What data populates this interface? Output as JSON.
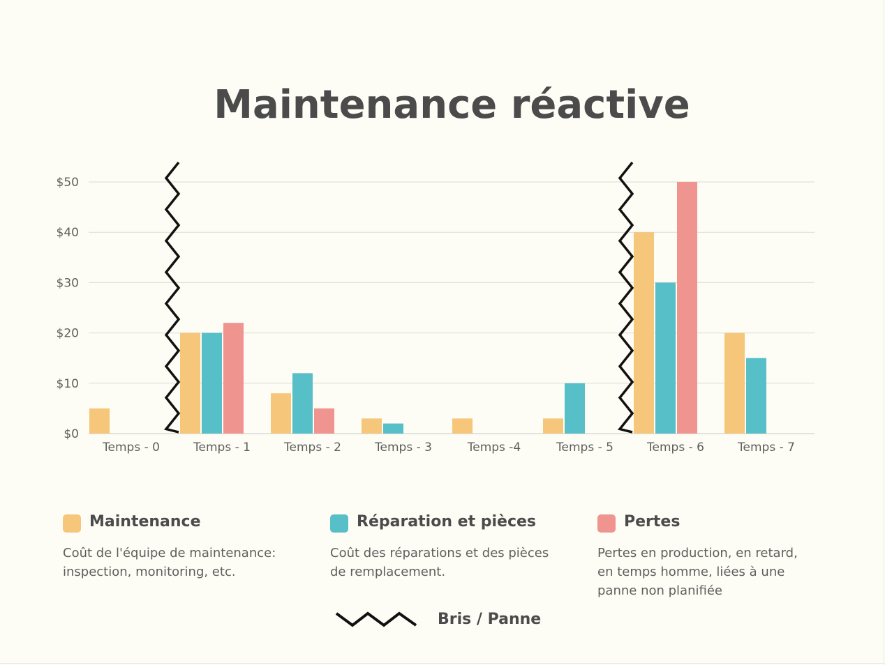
{
  "chart_data": {
    "type": "bar",
    "title": "Maintenance réactive",
    "categories": [
      "Temps - 0",
      "Temps - 1",
      "Temps - 2",
      "Temps - 3",
      "Temps -4",
      "Temps - 5",
      "Temps - 6",
      "Temps - 7"
    ],
    "series": [
      {
        "name": "Maintenance",
        "color": "#f6c67a",
        "values": [
          5,
          20,
          8,
          3,
          3,
          3,
          40,
          20
        ]
      },
      {
        "name": "Réparation et pièces",
        "color": "#56bfc8",
        "values": [
          0,
          20,
          12,
          2,
          0,
          10,
          30,
          15
        ]
      },
      {
        "name": "Pertes",
        "color": "#f0948f",
        "values": [
          0,
          22,
          5,
          0,
          0,
          0,
          50,
          0
        ]
      }
    ],
    "ylim": [
      0,
      50
    ],
    "yticks": [
      0,
      10,
      20,
      30,
      40,
      50
    ],
    "ytick_labels": [
      "$0",
      "$10",
      "$20",
      "$30",
      "$40",
      "$50"
    ],
    "grid": true,
    "breakdowns_before_categories": [
      "Temps - 1",
      "Temps - 6"
    ],
    "legend_placement": "bottom"
  },
  "legend": {
    "items": [
      {
        "name": "Maintenance",
        "color": "#f6c67a",
        "description": "Coût de l'équipe de maintenance: inspection, monitoring, etc."
      },
      {
        "name": "Réparation et pièces",
        "color": "#56bfc8",
        "description": "Coût des réparations et des pièces de remplacement."
      },
      {
        "name": "Pertes",
        "color": "#f0948f",
        "description": "Pertes en production, en retard, en temps homme, liées à une panne non planifiée"
      }
    ],
    "breakdown_label": "Bris / Panne"
  }
}
